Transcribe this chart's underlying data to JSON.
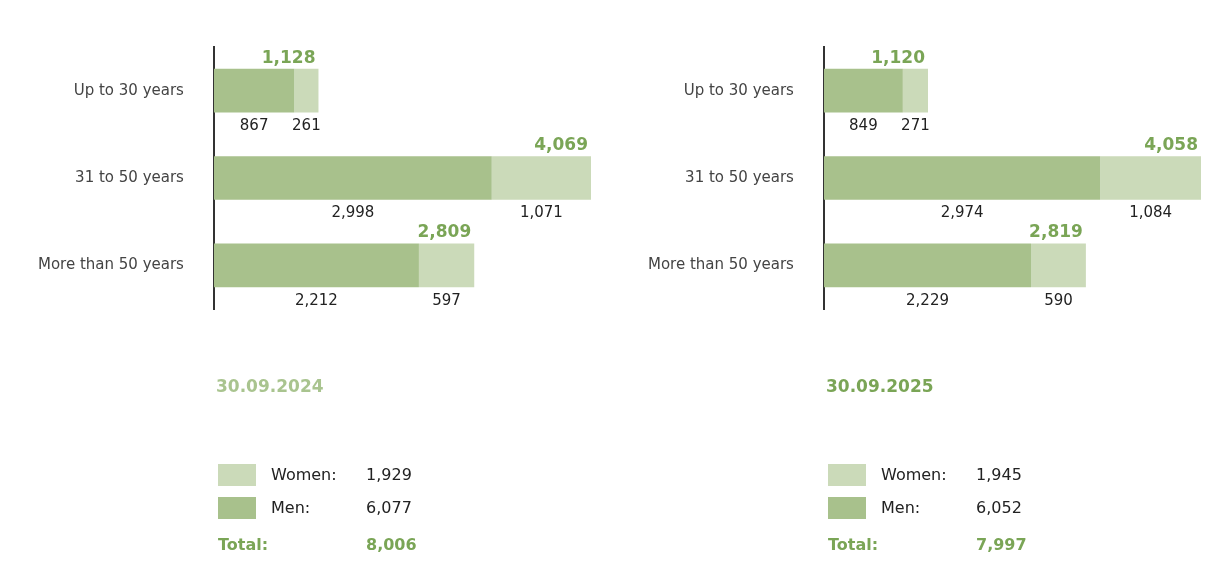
{
  "chart_data": [
    {
      "type": "bar",
      "title": "30.09.2024",
      "orientation": "horizontal",
      "stacked": true,
      "legend": "bottom",
      "categories": [
        "Up to 30 years",
        "31 to 50 years",
        "More than 50 years"
      ],
      "series": [
        {
          "name": "Men:",
          "color": "#a8c18c",
          "values": [
            867,
            2998,
            2212
          ],
          "value_labels": [
            "867",
            "2,998",
            "2,212"
          ]
        },
        {
          "name": "Women:",
          "color": "#cbdab9",
          "values": [
            261,
            1071,
            597
          ],
          "value_labels": [
            "261",
            "1,071",
            "597"
          ]
        }
      ],
      "totals": [
        "1,128",
        "4,069",
        "2,809"
      ],
      "annotations": [
        "1,929",
        "6,077",
        "Total:",
        "8,006"
      ]
    },
    {
      "type": "bar",
      "title": "30.09.2025",
      "orientation": "horizontal",
      "stacked": true,
      "legend": "bottom",
      "categories": [
        "Up to 30 years",
        "31 to 50 years",
        "More than 50 years"
      ],
      "series": [
        {
          "name": "Men:",
          "color": "#a8c18c",
          "values": [
            849,
            2974,
            2229
          ],
          "value_labels": [
            "849",
            "2,974",
            "2,229"
          ]
        },
        {
          "name": "Women:",
          "color": "#cbdab9",
          "values": [
            271,
            1084,
            590
          ],
          "value_labels": [
            "271",
            "1,084",
            "590"
          ]
        }
      ],
      "totals": [
        "1,120",
        "4,058",
        "2,819"
      ],
      "annotations": [
        "1,945",
        "6,052",
        "Total:",
        "7,997"
      ]
    }
  ]
}
